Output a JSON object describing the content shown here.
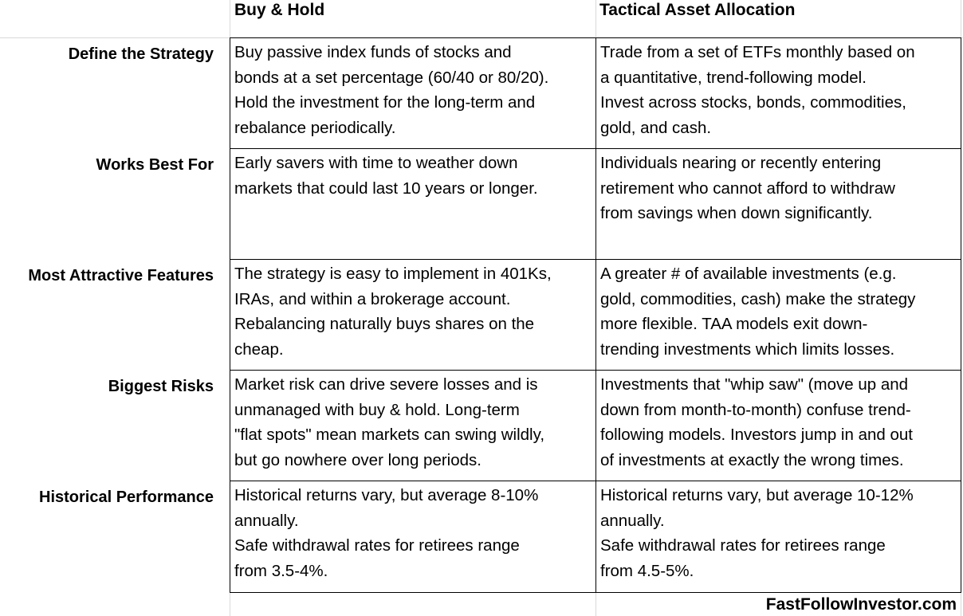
{
  "columns": {
    "col1": "Buy & Hold",
    "col2": "Tactical Asset Allocation"
  },
  "rows": [
    {
      "label": "Define the Strategy",
      "col1": [
        "Buy passive index funds of stocks and",
        "bonds at a set percentage (60/40 or 80/20).",
        "Hold the investment for the long-term and",
        "rebalance periodically."
      ],
      "col2": [
        "Trade from a set of ETFs monthly based on",
        "a quantitative, trend-following model.",
        "Invest across stocks, bonds, commodities,",
        "gold, and cash."
      ]
    },
    {
      "label": "Works Best For",
      "col1": [
        "Early savers with time to weather down",
        "markets that could last 10 years or longer."
      ],
      "col2": [
        "Individuals nearing or recently entering",
        "retirement who cannot afford to withdraw",
        "from savings when down significantly."
      ]
    },
    {
      "label": "Most Attractive Features",
      "col1": [
        "The strategy is easy to implement in 401Ks,",
        "IRAs, and within a brokerage account.",
        "Rebalancing naturally buys shares on the",
        "cheap."
      ],
      "col2": [
        "A greater # of available investments (e.g.",
        "gold, commodities, cash) make the strategy",
        "more flexible. TAA models exit down-",
        "trending investments which limits losses."
      ]
    },
    {
      "label": "Biggest Risks",
      "col1": [
        "Market risk can drive severe losses and is",
        "unmanaged with buy & hold. Long-term",
        "\"flat spots\" mean markets can swing wildly,",
        "but go nowhere over long periods."
      ],
      "col2": [
        "Investments that \"whip saw\" (move up and",
        "down from month-to-month) confuse trend-",
        "following models. Investors jump in and out",
        "of investments at exactly the wrong times."
      ]
    },
    {
      "label": "Historical Performance",
      "col1": [
        "Historical returns vary, but average 8-10%",
        "annually.",
        "Safe withdrawal rates for retirees range",
        "from 3.5-4%."
      ],
      "col2": [
        "Historical returns vary, but average 10-12%",
        "annually.",
        "Safe withdrawal rates for retirees range",
        "from 4.5-5%."
      ]
    }
  ],
  "footer": "FastFollowInvestor.com"
}
